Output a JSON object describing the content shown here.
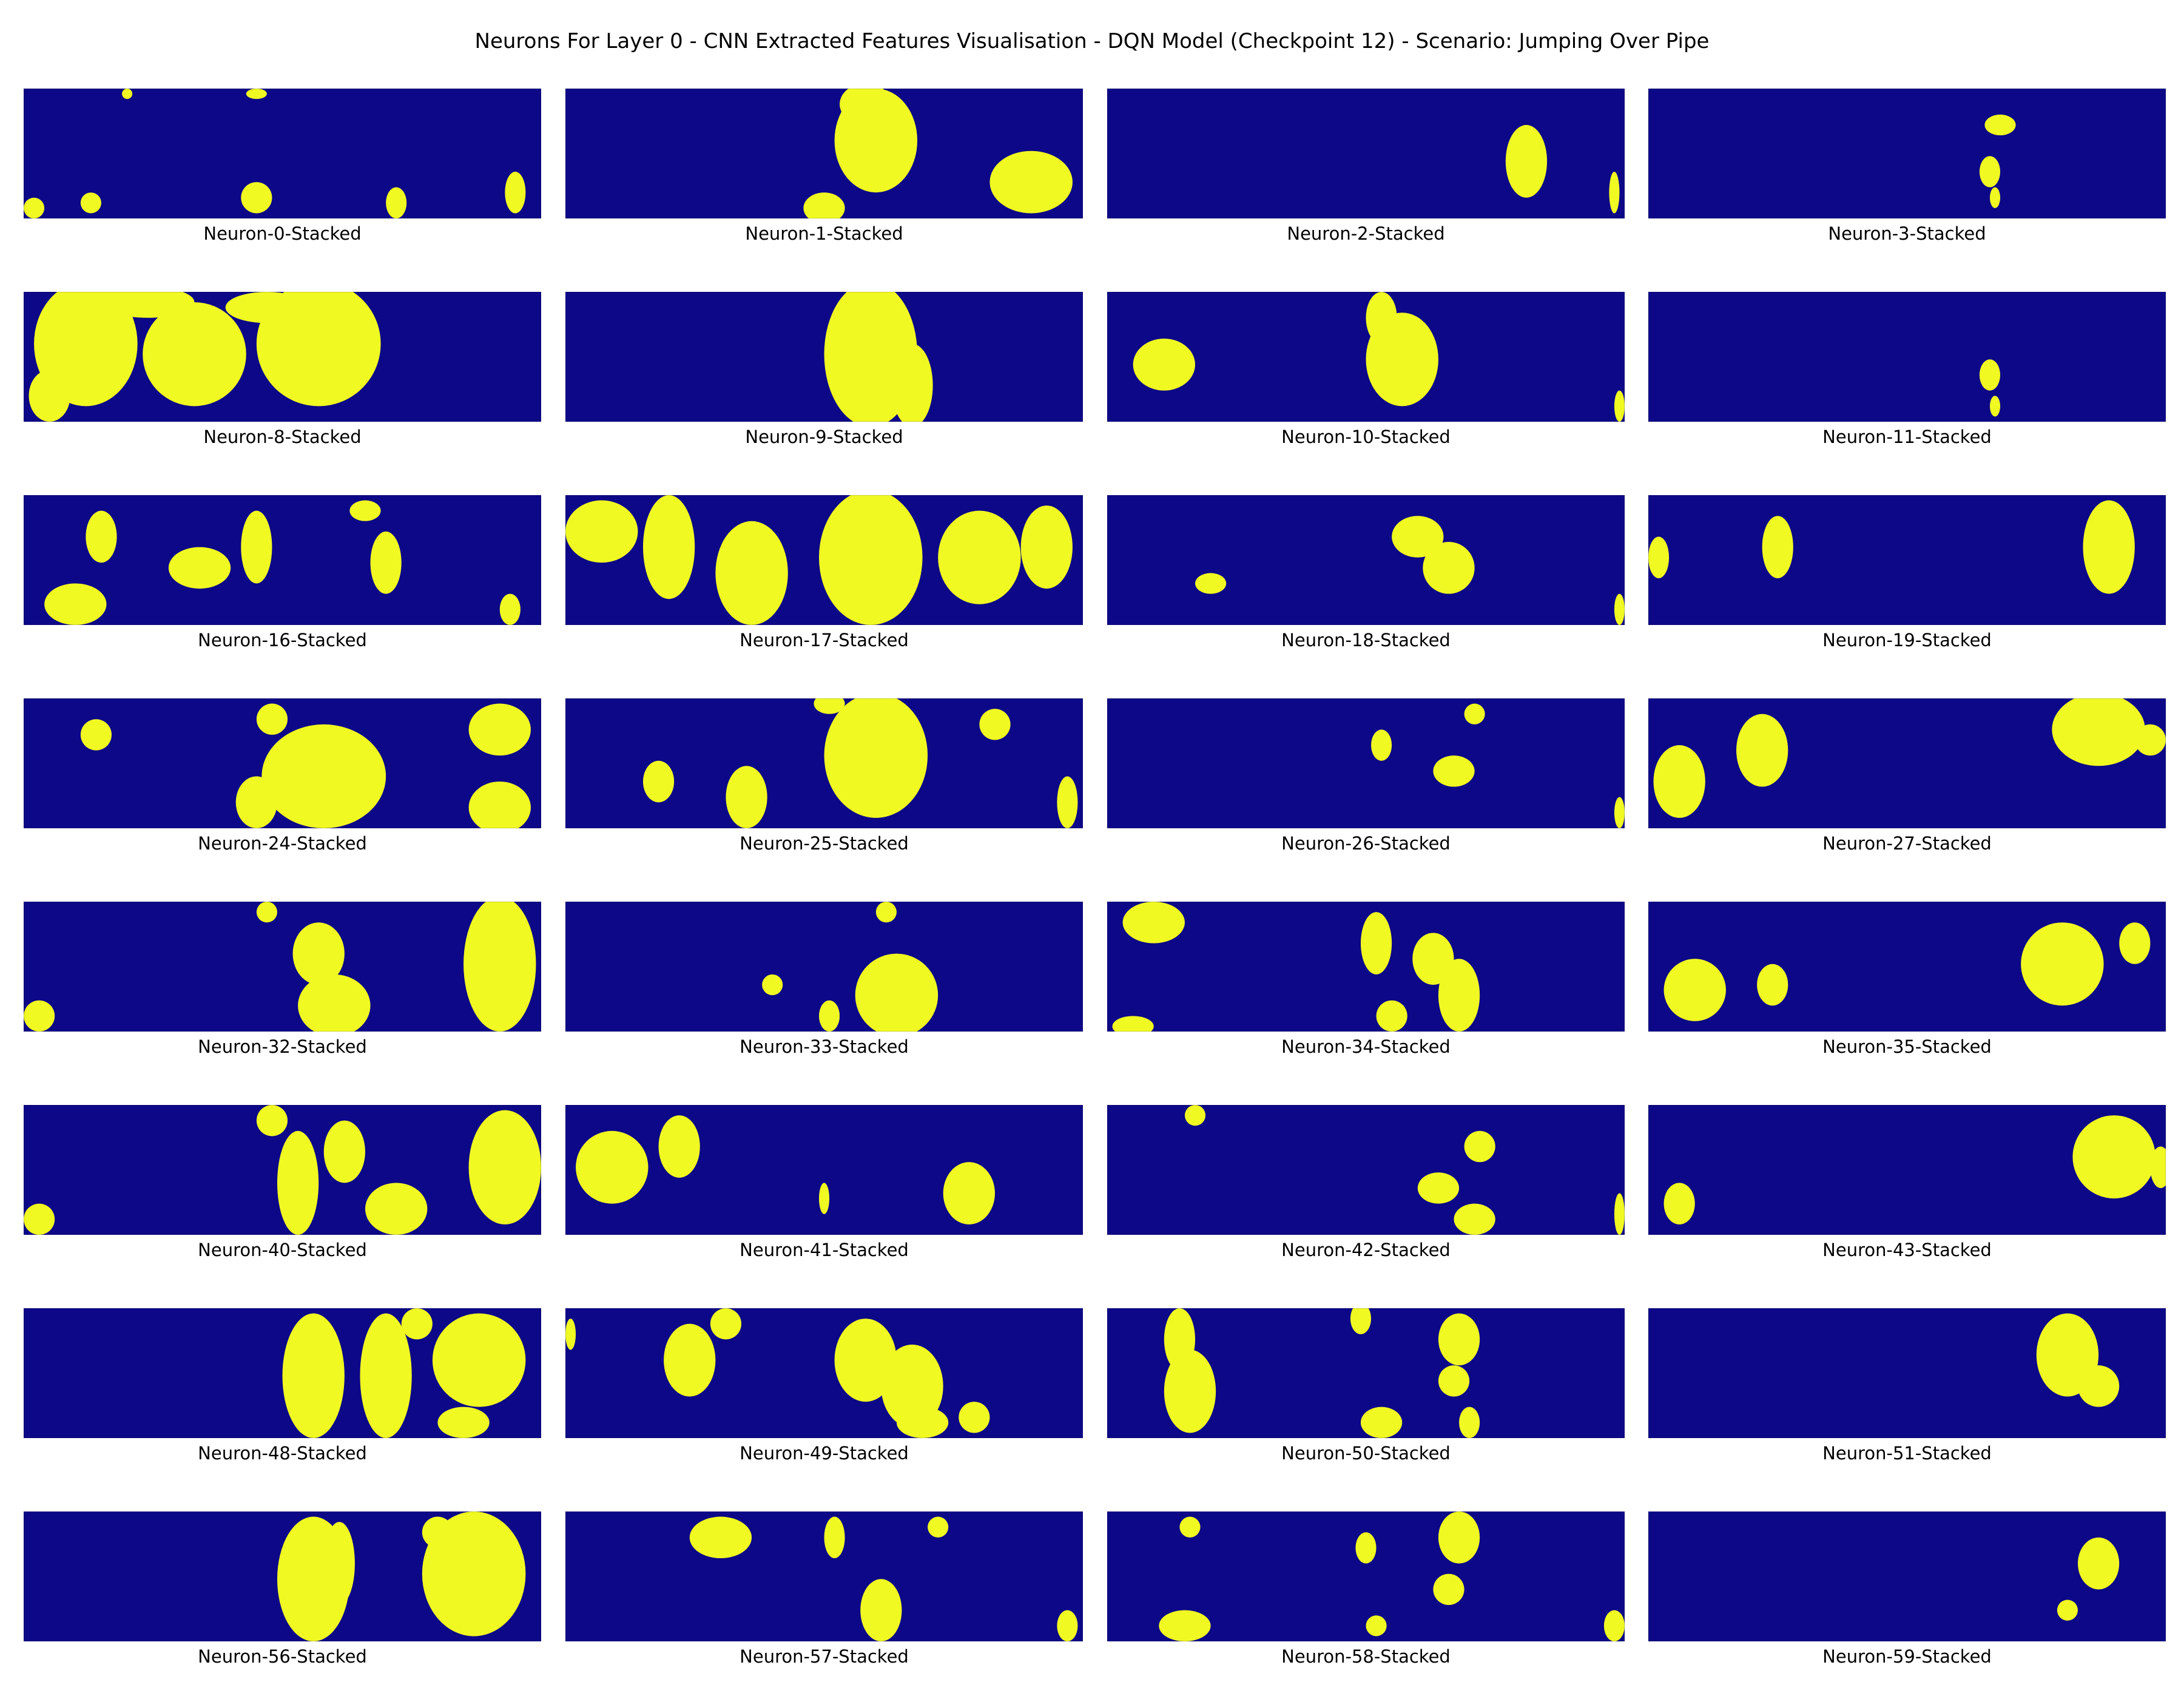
{
  "figure": {
    "title": "Neurons For Layer 0 - CNN Extracted Features Visualisation - DQN Model (Checkpoint 12) - Scenario: Jumping Over Pipe"
  },
  "colors": {
    "background_low": "#0d0887",
    "activation_high": "#f0f921",
    "frame": "#000000"
  },
  "chart_data": {
    "type": "heatmap",
    "layout": "grid",
    "grid_rows": 8,
    "grid_cols": 4,
    "colormap": "plasma (binarized: low=#0d0887, high=#f0f921)",
    "panels": [
      {
        "label": "Neuron-0-Stacked",
        "neuron": 0
      },
      {
        "label": "Neuron-1-Stacked",
        "neuron": 1
      },
      {
        "label": "Neuron-2-Stacked",
        "neuron": 2
      },
      {
        "label": "Neuron-3-Stacked",
        "neuron": 3
      },
      {
        "label": "Neuron-8-Stacked",
        "neuron": 8
      },
      {
        "label": "Neuron-9-Stacked",
        "neuron": 9
      },
      {
        "label": "Neuron-10-Stacked",
        "neuron": 10
      },
      {
        "label": "Neuron-11-Stacked",
        "neuron": 11
      },
      {
        "label": "Neuron-16-Stacked",
        "neuron": 16
      },
      {
        "label": "Neuron-17-Stacked",
        "neuron": 17
      },
      {
        "label": "Neuron-18-Stacked",
        "neuron": 18
      },
      {
        "label": "Neuron-19-Stacked",
        "neuron": 19
      },
      {
        "label": "Neuron-24-Stacked",
        "neuron": 24
      },
      {
        "label": "Neuron-25-Stacked",
        "neuron": 25
      },
      {
        "label": "Neuron-26-Stacked",
        "neuron": 26
      },
      {
        "label": "Neuron-27-Stacked",
        "neuron": 27
      },
      {
        "label": "Neuron-32-Stacked",
        "neuron": 32
      },
      {
        "label": "Neuron-33-Stacked",
        "neuron": 33
      },
      {
        "label": "Neuron-34-Stacked",
        "neuron": 34
      },
      {
        "label": "Neuron-35-Stacked",
        "neuron": 35
      },
      {
        "label": "Neuron-40-Stacked",
        "neuron": 40
      },
      {
        "label": "Neuron-41-Stacked",
        "neuron": 41
      },
      {
        "label": "Neuron-42-Stacked",
        "neuron": 42
      },
      {
        "label": "Neuron-43-Stacked",
        "neuron": 43
      },
      {
        "label": "Neuron-48-Stacked",
        "neuron": 48
      },
      {
        "label": "Neuron-49-Stacked",
        "neuron": 49
      },
      {
        "label": "Neuron-50-Stacked",
        "neuron": 50
      },
      {
        "label": "Neuron-51-Stacked",
        "neuron": 51
      },
      {
        "label": "Neuron-56-Stacked",
        "neuron": 56
      },
      {
        "label": "Neuron-57-Stacked",
        "neuron": 57
      },
      {
        "label": "Neuron-58-Stacked",
        "neuron": 58
      },
      {
        "label": "Neuron-59-Stacked",
        "neuron": 59
      }
    ]
  }
}
